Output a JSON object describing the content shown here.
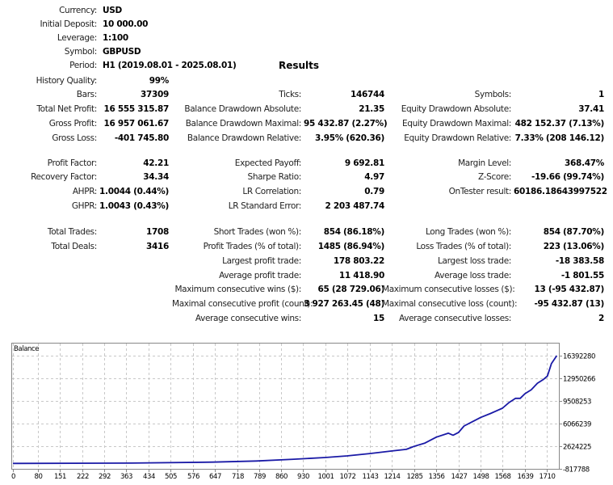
{
  "results_title": "Results",
  "header": [
    {
      "label": "Currency:",
      "value": "USD"
    },
    {
      "label": "Initial Deposit:",
      "value": "10 000.00"
    },
    {
      "label": "Leverage:",
      "value": "1:100"
    },
    {
      "label": "Symbol:",
      "value": "GBPUSD"
    },
    {
      "label": "Period:",
      "value": "H1 (2019.08.01 - 2025.08.01)"
    }
  ],
  "rows": [
    [
      {
        "label": "History Quality:",
        "value": "99%"
      }
    ],
    [
      {
        "label": "Bars:",
        "value": "37309"
      },
      {
        "label": "Ticks:",
        "value": "146744"
      },
      {
        "label": "Symbols:",
        "value": "1"
      }
    ],
    [
      {
        "label": "Total Net Profit:",
        "value": "16 555 315.87"
      },
      {
        "label": "Balance Drawdown Absolute:",
        "value": "21.35"
      },
      {
        "label": "Equity Drawdown Absolute:",
        "value": "37.41"
      }
    ],
    [
      {
        "label": "Gross Profit:",
        "value": "16 957 061.67"
      },
      {
        "label": "Balance Drawdown Maximal:",
        "value": "95 432.87 (2.27%)"
      },
      {
        "label": "Equity Drawdown Maximal:",
        "value": "482 152.37 (7.13%)"
      }
    ],
    [
      {
        "label": "Gross Loss:",
        "value": "-401 745.80"
      },
      {
        "label": "Balance Drawdown Relative:",
        "value": "3.95% (620.36)"
      },
      {
        "label": "Equity Drawdown Relative:",
        "value": "7.33% (208 146.12)"
      }
    ],
    [
      {
        "label": "Profit Factor:",
        "value": "42.21"
      },
      {
        "label": "Expected Payoff:",
        "value": "9 692.81"
      },
      {
        "label": "Margin Level:",
        "value": "368.47%"
      }
    ],
    [
      {
        "label": "Recovery Factor:",
        "value": "34.34"
      },
      {
        "label": "Sharpe Ratio:",
        "value": "4.97"
      },
      {
        "label": "Z-Score:",
        "value": "-19.66 (99.74%)"
      }
    ],
    [
      {
        "label": "AHPR:",
        "value": "1.0044 (0.44%)"
      },
      {
        "label": "LR Correlation:",
        "value": "0.79"
      },
      {
        "label": "OnTester result:",
        "value": "60186.18643997522"
      }
    ],
    [
      {
        "label": "GHPR:",
        "value": "1.0043 (0.43%)"
      },
      {
        "label": "LR Standard Error:",
        "value": "2 203 487.74"
      },
      null
    ],
    [
      {
        "label": "Total Trades:",
        "value": "1708"
      },
      {
        "label": "Short Trades (won %):",
        "value": "854 (86.18%)"
      },
      {
        "label": "Long Trades (won %):",
        "value": "854 (87.70%)"
      }
    ],
    [
      {
        "label": "Total Deals:",
        "value": "3416"
      },
      {
        "label": "Profit Trades (% of total):",
        "value": "1485 (86.94%)"
      },
      {
        "label": "Loss Trades (% of total):",
        "value": "223 (13.06%)"
      }
    ],
    [
      null,
      {
        "label": "Largest profit trade:",
        "value": "178 803.22"
      },
      {
        "label": "Largest loss trade:",
        "value": "-18 383.58"
      }
    ],
    [
      null,
      {
        "label": "Average profit trade:",
        "value": "11 418.90"
      },
      {
        "label": "Average loss trade:",
        "value": "-1 801.55"
      }
    ],
    [
      null,
      {
        "label": "Maximum consecutive wins ($):",
        "value": "65 (28 729.06)"
      },
      {
        "label": "Maximum consecutive losses ($):",
        "value": "13 (-95 432.87)"
      }
    ],
    [
      null,
      {
        "label": "Maximal consecutive profit (count):",
        "value": "3 927 263.45 (48)"
      },
      {
        "label": "Maximal consecutive loss (count):",
        "value": "-95 432.87 (13)"
      }
    ],
    [
      null,
      {
        "label": "Average consecutive wins:",
        "value": "15"
      },
      {
        "label": "Average consecutive losses:",
        "value": "2"
      }
    ]
  ],
  "chart_data": {
    "type": "line",
    "title": "Balance",
    "line_color": "#1a1aa6",
    "grid": true,
    "x_ticks": [
      "0",
      "80",
      "151",
      "222",
      "292",
      "363",
      "434",
      "505",
      "576",
      "647",
      "718",
      "789",
      "860",
      "930",
      "1001",
      "1072",
      "1143",
      "1214",
      "1285",
      "1356",
      "1427",
      "1498",
      "1568",
      "1639",
      "1710"
    ],
    "y_ticks": [
      "16392280",
      "12950266",
      "9508253",
      "6066239",
      "2624225",
      "-817788"
    ],
    "ylim": [
      -817788,
      16392280
    ],
    "xlim": [
      0,
      1710
    ],
    "series": [
      {
        "x": [
          0,
          380,
          640,
          780,
          900,
          1000,
          1070,
          1143,
          1214,
          1260,
          1285,
          1320,
          1356,
          1395,
          1410,
          1427,
          1445,
          1470,
          1498,
          1530,
          1568,
          1590,
          1610,
          1625,
          1640,
          1660,
          1680,
          1700,
          1712,
          1725,
          1742
        ],
        "y": [
          10000,
          60000,
          200000,
          380000,
          650000,
          900000,
          1150000,
          1500000,
          1900000,
          2150000,
          2600000,
          3100000,
          4000000,
          4600000,
          4300000,
          4700000,
          5700000,
          6300000,
          7000000,
          7600000,
          8400000,
          9300000,
          9900000,
          9900000,
          10600000,
          11200000,
          12200000,
          12800000,
          13300000,
          15200000,
          16392280
        ]
      }
    ]
  }
}
